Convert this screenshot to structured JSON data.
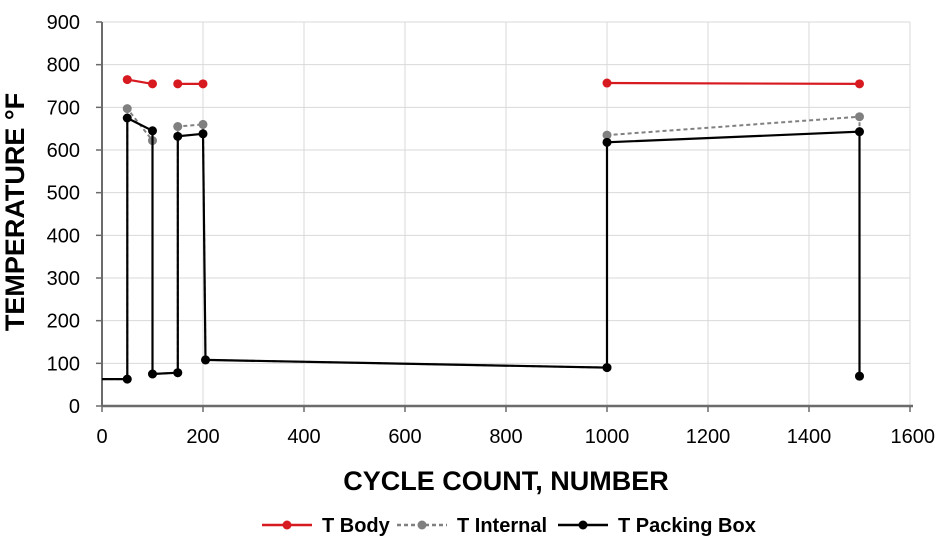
{
  "chart_data": {
    "type": "line",
    "xlabel": "CYCLE COUNT, NUMBER",
    "ylabel": "TEMPERATURE °F",
    "xlim": [
      0,
      1600
    ],
    "ylim": [
      0,
      900
    ],
    "xticks": [
      "0",
      "200",
      "400",
      "600",
      "800",
      "1000",
      "1200",
      "1400",
      "1600"
    ],
    "yticks": [
      "0",
      "100",
      "200",
      "300",
      "400",
      "500",
      "600",
      "700",
      "800",
      "900"
    ],
    "grid": true,
    "legend_position": "bottom",
    "series": [
      {
        "name": "T Body",
        "color": "#d71920",
        "style": "solid",
        "segments": [
          [
            [
              50,
              765
            ],
            [
              100,
              755
            ]
          ],
          [
            [
              150,
              755
            ],
            [
              200,
              755
            ]
          ],
          [
            [
              1000,
              757
            ],
            [
              1500,
              755
            ]
          ]
        ],
        "markers": [
          [
            50,
            765
          ],
          [
            100,
            755
          ],
          [
            150,
            755
          ],
          [
            200,
            755
          ],
          [
            1000,
            757
          ],
          [
            1500,
            755
          ]
        ]
      },
      {
        "name": "T Internal",
        "color": "#808080",
        "style": "dashed",
        "segments": [
          [
            [
              0,
              63
            ],
            [
              50,
              63
            ],
            [
              50,
              697
            ],
            [
              100,
              622
            ],
            [
              100,
              75
            ],
            [
              150,
              78
            ],
            [
              150,
              655
            ],
            [
              200,
              660
            ],
            [
              205,
              108
            ],
            [
              1000,
              90
            ],
            [
              1000,
              635
            ],
            [
              1500,
              678
            ],
            [
              1500,
              70
            ]
          ]
        ],
        "markers": [
          [
            50,
            63
          ],
          [
            50,
            697
          ],
          [
            100,
            622
          ],
          [
            100,
            75
          ],
          [
            150,
            78
          ],
          [
            150,
            655
          ],
          [
            200,
            660
          ],
          [
            205,
            108
          ],
          [
            1000,
            90
          ],
          [
            1000,
            635
          ],
          [
            1500,
            678
          ],
          [
            1500,
            70
          ]
        ]
      },
      {
        "name": "T Packing Box",
        "color": "#000000",
        "style": "solid",
        "segments": [
          [
            [
              0,
              63
            ],
            [
              50,
              63
            ],
            [
              50,
              675
            ],
            [
              100,
              645
            ],
            [
              100,
              75
            ],
            [
              150,
              78
            ],
            [
              150,
              632
            ],
            [
              200,
              638
            ],
            [
              205,
              108
            ],
            [
              1000,
              90
            ],
            [
              1000,
              618
            ],
            [
              1500,
              643
            ],
            [
              1500,
              70
            ]
          ]
        ],
        "markers": [
          [
            50,
            63
          ],
          [
            50,
            675
          ],
          [
            100,
            645
          ],
          [
            100,
            75
          ],
          [
            150,
            78
          ],
          [
            150,
            632
          ],
          [
            200,
            638
          ],
          [
            205,
            108
          ],
          [
            1000,
            90
          ],
          [
            1000,
            618
          ],
          [
            1500,
            643
          ],
          [
            1500,
            70
          ]
        ]
      }
    ]
  }
}
